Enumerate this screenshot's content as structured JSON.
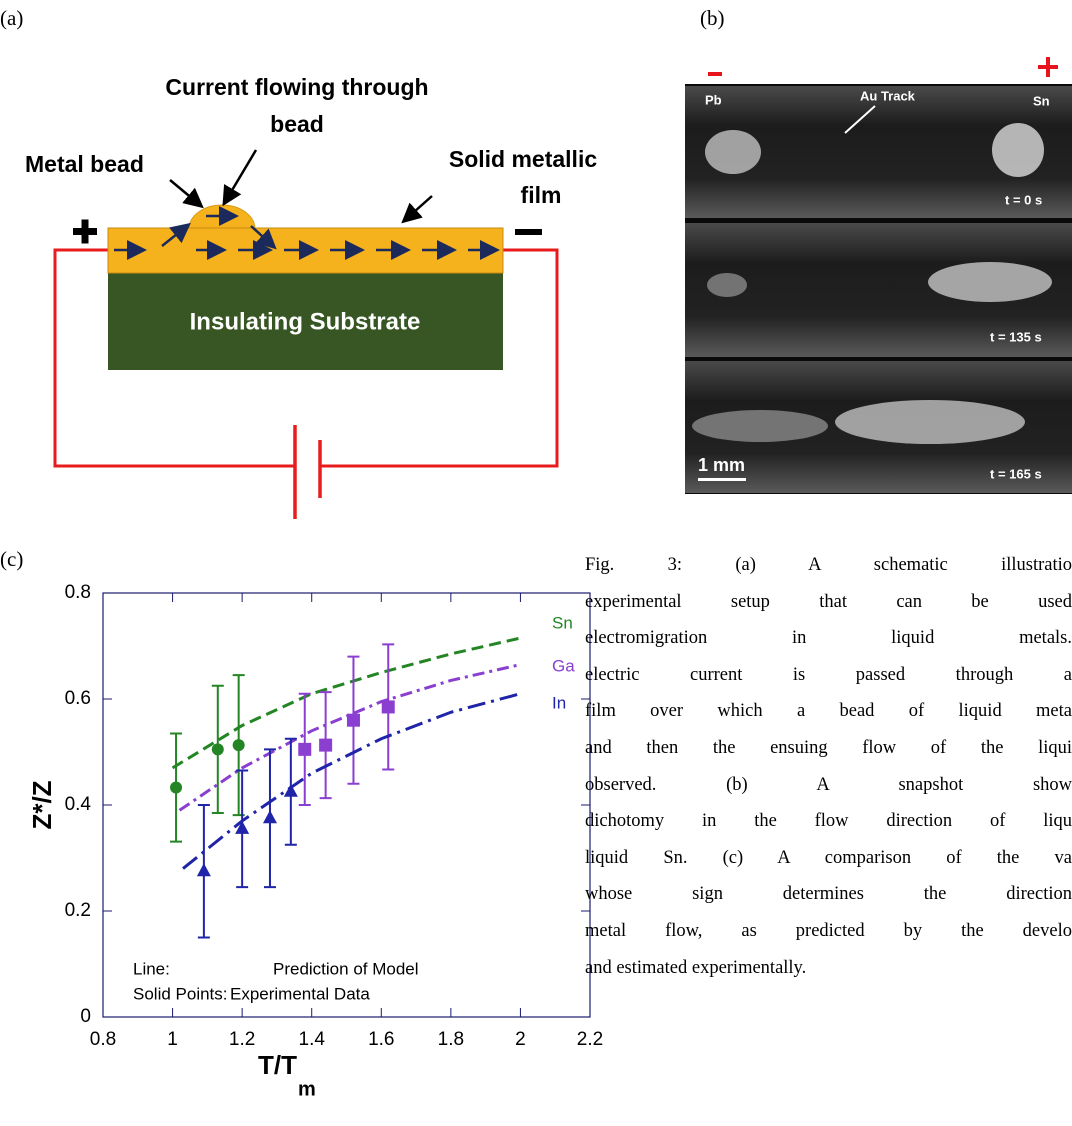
{
  "panel_labels": {
    "a": "(a)",
    "b": "(b)",
    "c": "(c)"
  },
  "diagram": {
    "current_label": [
      "Current flowing through",
      "bead"
    ],
    "bead_label": "Metal bead",
    "film_label": [
      "Solid metallic",
      "film"
    ],
    "substrate_label": "Insulating Substrate"
  },
  "photo": {
    "left_electrode": "Pb",
    "right_electrode": "Sn",
    "track_label": "Au Track",
    "times": [
      "t = 0 s",
      "t = 135 s",
      "t = 165 s"
    ],
    "scale_bar": "1 mm"
  },
  "chart_data": {
    "type": "line",
    "xlabel": {
      "text": "T/T",
      "subscript": "m"
    },
    "ylabel": "Z*/Z",
    "xlim": [
      0.8,
      2.2
    ],
    "ylim": [
      0,
      0.8
    ],
    "xticks": [
      0.8,
      1,
      1.2,
      1.4,
      1.6,
      1.8,
      2,
      2.2
    ],
    "yticks": [
      0,
      0.2,
      0.4,
      0.6,
      0.8
    ],
    "annotations": [
      [
        "Line:",
        "Prediction of Model"
      ],
      [
        "Solid Points:",
        "Experimental Data"
      ]
    ],
    "series": [
      {
        "name": "Sn",
        "color": "#238523",
        "marker": "circle",
        "dash": "dashed",
        "line": {
          "x": [
            1.0,
            1.2,
            1.4,
            1.6,
            1.8,
            2.0
          ],
          "y": [
            0.47,
            0.55,
            0.61,
            0.65,
            0.685,
            0.715
          ]
        },
        "points": {
          "x": [
            1.01,
            1.13,
            1.19
          ],
          "y": [
            0.433,
            0.505,
            0.513
          ],
          "errors": [
            0.102,
            0.12,
            0.132
          ]
        }
      },
      {
        "name": "Ga",
        "color": "#8a3fd1",
        "marker": "square",
        "dash": "dash-dot",
        "line": {
          "x": [
            1.02,
            1.2,
            1.4,
            1.6,
            1.8,
            2.0
          ],
          "y": [
            0.39,
            0.47,
            0.54,
            0.595,
            0.635,
            0.665
          ]
        },
        "points": {
          "x": [
            1.38,
            1.44,
            1.52,
            1.62
          ],
          "y": [
            0.505,
            0.513,
            0.56,
            0.585
          ],
          "errors": [
            0.105,
            0.1,
            0.12,
            0.118
          ]
        }
      },
      {
        "name": "In",
        "color": "#1f24a8",
        "marker": "triangle",
        "dash": "long-dash-dot",
        "line": {
          "x": [
            1.03,
            1.2,
            1.4,
            1.6,
            1.8,
            2.0
          ],
          "y": [
            0.28,
            0.37,
            0.46,
            0.525,
            0.575,
            0.61
          ]
        },
        "points": {
          "x": [
            1.09,
            1.2,
            1.28,
            1.34
          ],
          "y": [
            0.275,
            0.355,
            0.375,
            0.425
          ],
          "errors": [
            0.125,
            0.11,
            0.13,
            0.1
          ]
        }
      }
    ]
  },
  "caption": [
    "Fig. 3: (a) A schematic illustratio",
    "experimental setup that can be used",
    "electromigration in liquid metals.",
    "electric current is passed through a",
    "film over which a bead of liquid meta",
    "and then the ensuing flow of the liqui",
    "observed. (b) A snapshot show",
    "dichotomy in the flow direction of liqu",
    "liquid Sn. (c) A comparison of the va",
    "whose sign determines the direction",
    "metal flow, as predicted by the develo",
    "and estimated experimentally."
  ]
}
